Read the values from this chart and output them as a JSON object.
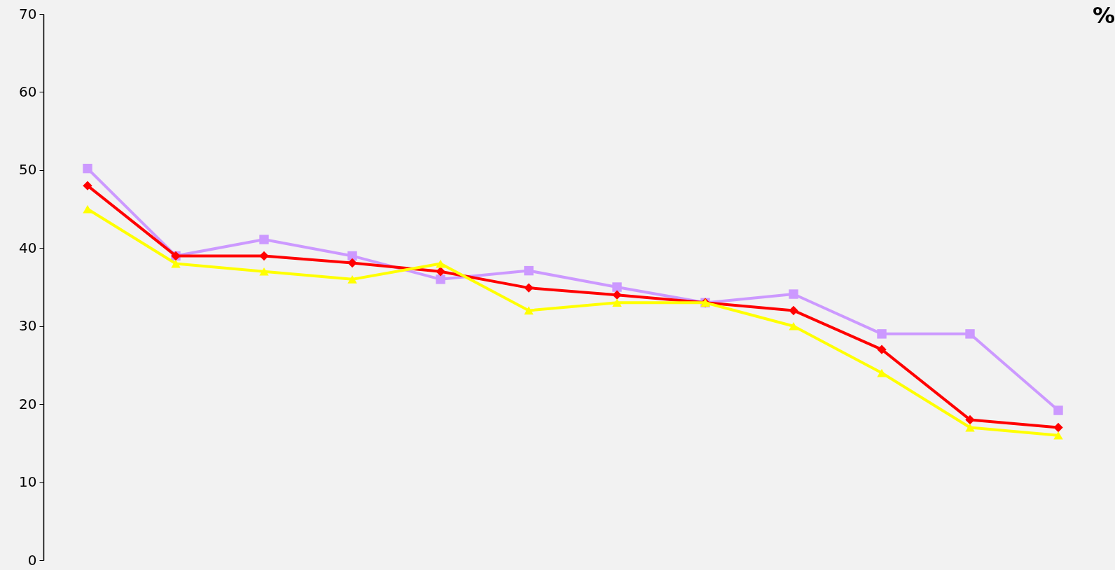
{
  "chart_data": {
    "type": "line",
    "ylabel": "%",
    "categories": [
      null,
      null,
      null,
      null,
      null,
      null,
      null,
      null,
      null,
      null,
      null,
      null
    ],
    "series": [
      {
        "color": "#cc99ff",
        "marker": "square",
        "values": [
          50.2,
          39,
          41.1,
          39,
          36,
          37.1,
          35,
          33,
          34.1,
          29,
          29,
          19.2
        ]
      },
      {
        "color": "#ff0000",
        "marker": "diamond",
        "values": [
          48,
          39,
          39,
          38.1,
          37,
          34.9,
          34,
          33,
          32,
          27,
          18,
          17
        ]
      },
      {
        "color": "#ffff00",
        "marker": "triangle",
        "values": [
          45,
          38,
          37,
          36,
          38,
          32,
          33,
          33,
          30,
          24,
          17,
          16
        ]
      }
    ],
    "ylim": [
      0,
      70
    ],
    "yticks": [
      0,
      10,
      20,
      30,
      40,
      50,
      60,
      70
    ],
    "tick_labels": "y",
    "grid": false
  }
}
